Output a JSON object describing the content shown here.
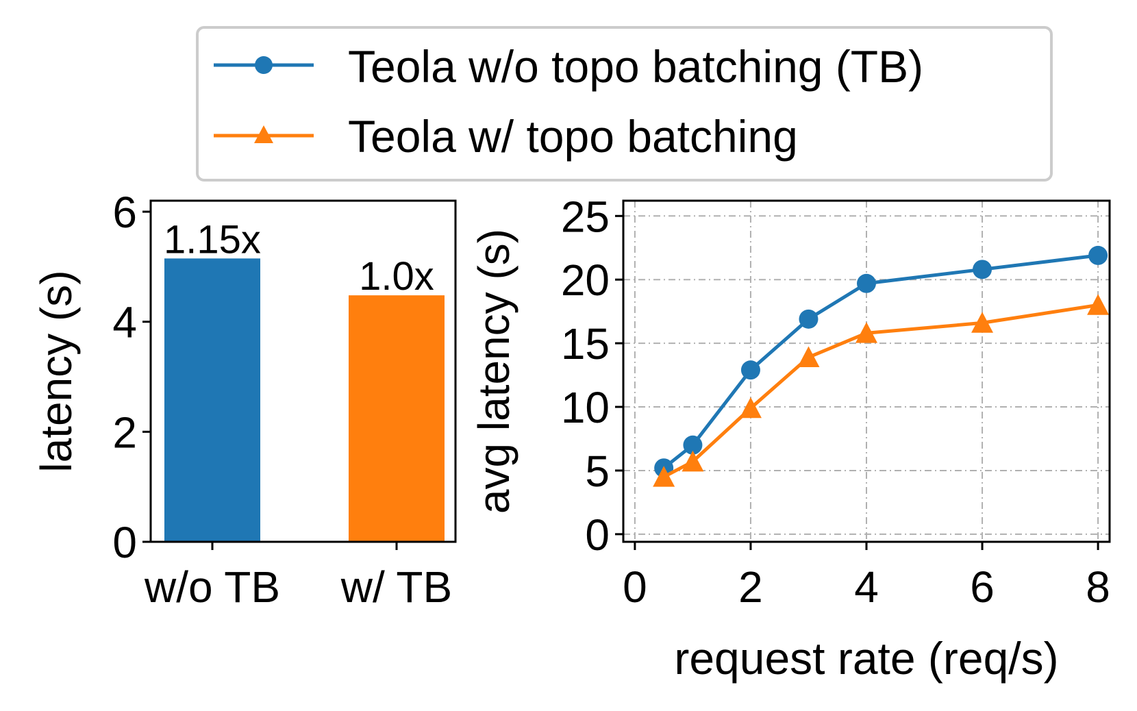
{
  "legend": {
    "entries": [
      {
        "label": "Teola w/o topo batching (TB)",
        "color": "#1f77b4",
        "marker": "circle-marker"
      },
      {
        "label": "Teola w/ topo batching",
        "color": "#ff7f0e",
        "marker": "triangle-marker"
      }
    ]
  },
  "chart_data": [
    {
      "type": "bar",
      "title": "",
      "xlabel": "",
      "ylabel": "latency (s)",
      "categories": [
        "w/o TB",
        "w/ TB"
      ],
      "values": [
        5.15,
        4.48
      ],
      "data_labels": [
        "1.15x",
        "1.0x"
      ],
      "colors": [
        "#1f77b4",
        "#ff7f0e"
      ],
      "ylim": [
        0,
        6.2
      ],
      "yticks": [
        0,
        2,
        4,
        6
      ],
      "ytick_labels": [
        "0",
        "2",
        "4",
        "6"
      ],
      "grid": false
    },
    {
      "type": "line",
      "title": "",
      "xlabel": "request rate (req/s)",
      "ylabel": "avg latency (s)",
      "xlim": [
        -0.2,
        8.2
      ],
      "ylim": [
        -0.6,
        26.2
      ],
      "xticks": [
        0,
        2,
        4,
        6,
        8
      ],
      "xtick_labels": [
        "0",
        "2",
        "4",
        "6",
        "8"
      ],
      "yticks": [
        0,
        5,
        10,
        15,
        20,
        25
      ],
      "ytick_labels": [
        "0",
        "5",
        "10",
        "15",
        "20",
        "25"
      ],
      "grid": true,
      "series": [
        {
          "name": "Teola w/o topo batching (TB)",
          "color": "#1f77b4",
          "marker": "circle",
          "x": [
            0.5,
            1,
            2,
            3,
            4,
            6,
            8
          ],
          "y": [
            5.2,
            7.0,
            12.9,
            16.9,
            19.7,
            20.8,
            21.9
          ]
        },
        {
          "name": "Teola w/ topo batching",
          "color": "#ff7f0e",
          "marker": "triangle",
          "x": [
            0.5,
            1,
            2,
            3,
            4,
            6,
            8
          ],
          "y": [
            4.5,
            5.7,
            9.9,
            13.9,
            15.8,
            16.6,
            18.0
          ]
        }
      ]
    }
  ]
}
